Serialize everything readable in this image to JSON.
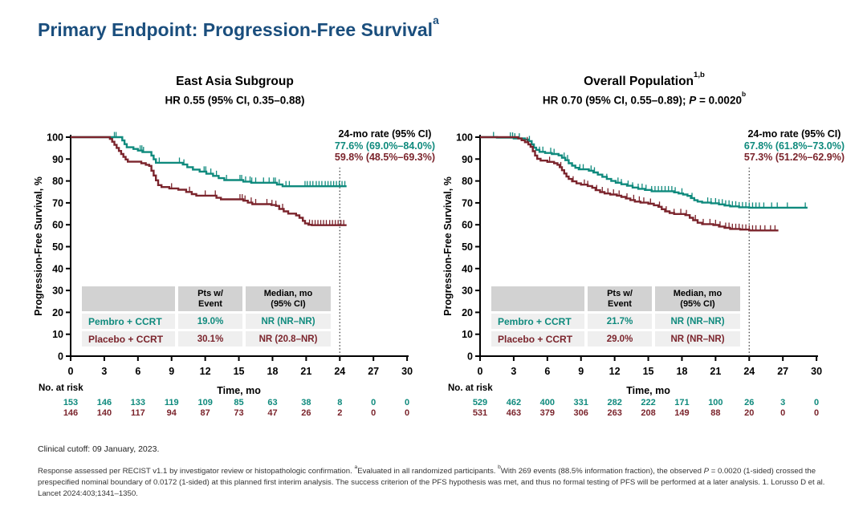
{
  "slide": {
    "title": "Primary Endpoint: Progression-Free Survival",
    "title_sup": "a",
    "clinical_cutoff": "Clinical cutoff: 09 January, 2023.",
    "footnote_parts": {
      "f1": "Response assessed per RECIST v1.1 by investigator review or histopathologic confirmation. ",
      "sup1": "a",
      "f2": "Evaluated in all randomized participants. ",
      "sup2": "b",
      "f3": "With 269 events (88.5% information fraction), the observed ",
      "p_italic": "P",
      "f4": " = 0.0020 (1-sided) crossed the prespecified nominal boundary of 0.0172 (1-sided) at this planned first interim analysis. The success criterion of the PFS hypothesis was met, and thus no formal testing of PFS will be performed at a later analysis. 1. Lorusso D et al. Lancet 2024:403;1341–1350."
    }
  },
  "colors": {
    "title_blue": "#1a4e7d",
    "pembro": "#0f8a7d",
    "placebo": "#7b242c",
    "axis": "#000000",
    "dotted": "#444444",
    "table_header_bg": "#d2d2d2",
    "table_row_bg": "#efefef"
  },
  "chart_data": [
    {
      "type": "line",
      "km_step": true,
      "title": "East Asia Subgroup",
      "title_sup": "",
      "subtitle_parts": {
        "pre": "HR 0.55 (95% CI, 0.35–0.88)",
        "p": "",
        "mid": "",
        "sup": ""
      },
      "xlabel": "Time, mo",
      "ylabel": "Progression-Free Survival, %",
      "xlim": [
        0,
        30
      ],
      "ylim": [
        0,
        100
      ],
      "xticks": [
        0,
        3,
        6,
        9,
        12,
        15,
        18,
        21,
        24,
        27,
        30
      ],
      "yticks": [
        0,
        10,
        20,
        30,
        40,
        50,
        60,
        70,
        80,
        90,
        100
      ],
      "dotted_x": 24,
      "annotation": {
        "header": "24-mo rate (95% CI)",
        "pembro": "77.6% (69.0%–84.0%)",
        "placebo": "59.8% (48.5%–69.3%)"
      },
      "table": {
        "headers": [
          "",
          "Pts w/\nEvent",
          "Median, mo\n(95% CI)"
        ],
        "rows": [
          {
            "label": "Pembro + CCRT",
            "event": "19.0%",
            "median": "NR (NR–NR)"
          },
          {
            "label": "Placebo + CCRT",
            "event": "30.1%",
            "median": "NR (20.8–NR)"
          }
        ]
      },
      "no_at_risk_label": "No. at risk",
      "at_risk": [
        {
          "name": "Pembro + CCRT",
          "color_key": "pembro",
          "values": [
            153,
            146,
            133,
            119,
            109,
            85,
            63,
            38,
            8,
            0,
            0
          ]
        },
        {
          "name": "Placebo + CCRT",
          "color_key": "placebo",
          "values": [
            146,
            140,
            117,
            94,
            87,
            73,
            47,
            26,
            2,
            0,
            0
          ]
        }
      ],
      "series": [
        {
          "name": "Pembro + CCRT",
          "color_key": "pembro",
          "points": [
            [
              0,
              100
            ],
            [
              4.6,
              98.5
            ],
            [
              4.8,
              96.8
            ],
            [
              5.0,
              95.4
            ],
            [
              5.6,
              94.6
            ],
            [
              6.0,
              93.9
            ],
            [
              6.4,
              93.2
            ],
            [
              7.2,
              91.6
            ],
            [
              7.4,
              89.9
            ],
            [
              7.6,
              88.3
            ],
            [
              10.0,
              87.5
            ],
            [
              10.4,
              86.3
            ],
            [
              10.9,
              85.2
            ],
            [
              11.5,
              84.3
            ],
            [
              12.1,
              83.3
            ],
            [
              12.7,
              82.3
            ],
            [
              13.2,
              81.3
            ],
            [
              13.7,
              80.4
            ],
            [
              15.4,
              79.7
            ],
            [
              16.1,
              79.2
            ],
            [
              18.4,
              78.4
            ],
            [
              18.9,
              77.6
            ],
            [
              24.6,
              77.6
            ]
          ],
          "censors": [
            3.9,
            4.05,
            6.2,
            6.35,
            6.5,
            7.9,
            9.7,
            10.1,
            11.9,
            12.05,
            12.5,
            13.0,
            13.9,
            15.1,
            15.25,
            15.6,
            16.0,
            16.15,
            16.5,
            17.2,
            17.7,
            18.1,
            18.25,
            18.6,
            19.2,
            19.5,
            20.9,
            21.1,
            21.35,
            21.6,
            21.9,
            22.15,
            22.4,
            22.7,
            22.95,
            23.2,
            23.45,
            23.7,
            23.95,
            24.2,
            24.45
          ]
        },
        {
          "name": "Placebo + CCRT",
          "color_key": "placebo",
          "points": [
            [
              0,
              100
            ],
            [
              3.5,
              99.2
            ],
            [
              3.7,
              97.9
            ],
            [
              3.9,
              96.5
            ],
            [
              4.1,
              95.1
            ],
            [
              4.3,
              93.7
            ],
            [
              4.5,
              92.3
            ],
            [
              4.7,
              91.0
            ],
            [
              4.9,
              89.8
            ],
            [
              5.1,
              88.8
            ],
            [
              6.3,
              88.1
            ],
            [
              6.7,
              87.4
            ],
            [
              7.0,
              86.9
            ],
            [
              7.2,
              84.7
            ],
            [
              7.4,
              82.5
            ],
            [
              7.6,
              80.3
            ],
            [
              7.8,
              78.1
            ],
            [
              8.1,
              77.2
            ],
            [
              8.8,
              76.6
            ],
            [
              9.6,
              76.0
            ],
            [
              10.3,
              75.0
            ],
            [
              10.8,
              74.0
            ],
            [
              11.2,
              73.3
            ],
            [
              13.0,
              72.3
            ],
            [
              13.4,
              71.6
            ],
            [
              15.4,
              71.0
            ],
            [
              15.8,
              70.1
            ],
            [
              16.2,
              69.4
            ],
            [
              17.9,
              69.0
            ],
            [
              18.3,
              68.6
            ],
            [
              18.6,
              67.2
            ],
            [
              19.0,
              66.1
            ],
            [
              19.4,
              65.1
            ],
            [
              20.1,
              64.3
            ],
            [
              20.4,
              63.2
            ],
            [
              20.7,
              61.8
            ],
            [
              20.9,
              60.6
            ],
            [
              21.2,
              60.0
            ],
            [
              21.5,
              59.8
            ],
            [
              24.6,
              59.8
            ]
          ],
          "censors": [
            9.0,
            10.6,
            12.0,
            12.9,
            15.1,
            15.3,
            15.55,
            16.1,
            16.5,
            17.5,
            17.95,
            18.3,
            18.9,
            21.3,
            21.55,
            21.8,
            22.05,
            22.3,
            22.55,
            22.8,
            23.1,
            23.35,
            23.6,
            23.85,
            24.1,
            24.35
          ]
        }
      ]
    },
    {
      "type": "line",
      "km_step": true,
      "title": "Overall Population",
      "title_sup": "1,b",
      "subtitle_parts": {
        "pre": "HR 0.70 (95% CI, 0.55–0.89); ",
        "p": "P",
        "mid": " = 0.0020",
        "sup": "b"
      },
      "xlabel": "Time, mo",
      "ylabel": "Progression-Free Survival, %",
      "xlim": [
        0,
        30
      ],
      "ylim": [
        0,
        100
      ],
      "xticks": [
        0,
        3,
        6,
        9,
        12,
        15,
        18,
        21,
        24,
        27,
        30
      ],
      "yticks": [
        0,
        10,
        20,
        30,
        40,
        50,
        60,
        70,
        80,
        90,
        100
      ],
      "dotted_x": 24,
      "annotation": {
        "header": "24-mo rate (95% CI)",
        "pembro": "67.8% (61.8%–73.0%)",
        "placebo": "57.3% (51.2%–62.9%)"
      },
      "table": {
        "headers": [
          "",
          "Pts w/\nEvent",
          "Median, mo\n(95% CI)"
        ],
        "rows": [
          {
            "label": "Pembro + CCRT",
            "event": "21.7%",
            "median": "NR (NR–NR)"
          },
          {
            "label": "Placebo + CCRT",
            "event": "29.0%",
            "median": "NR (NR–NR)"
          }
        ]
      },
      "no_at_risk_label": "No. at risk",
      "at_risk": [
        {
          "name": "Pembro + CCRT",
          "color_key": "pembro",
          "values": [
            529,
            462,
            400,
            331,
            282,
            222,
            171,
            100,
            26,
            3,
            0
          ]
        },
        {
          "name": "Placebo + CCRT",
          "color_key": "placebo",
          "values": [
            531,
            463,
            379,
            306,
            263,
            208,
            149,
            88,
            20,
            0,
            0
          ]
        }
      ],
      "series": [
        {
          "name": "Pembro + CCRT",
          "color_key": "pembro",
          "points": [
            [
              0,
              100
            ],
            [
              1.5,
              99.8
            ],
            [
              3.0,
              99.4
            ],
            [
              4.0,
              98.9
            ],
            [
              4.3,
              98.2
            ],
            [
              4.6,
              96.7
            ],
            [
              4.8,
              95.2
            ],
            [
              5.0,
              94.2
            ],
            [
              5.3,
              93.3
            ],
            [
              5.8,
              92.8
            ],
            [
              6.4,
              92.3
            ],
            [
              7.0,
              91.7
            ],
            [
              7.3,
              90.6
            ],
            [
              7.6,
              89.5
            ],
            [
              7.9,
              88.1
            ],
            [
              8.2,
              87.0
            ],
            [
              8.5,
              86.0
            ],
            [
              8.8,
              85.3
            ],
            [
              9.7,
              84.7
            ],
            [
              10.1,
              83.9
            ],
            [
              10.5,
              82.9
            ],
            [
              10.9,
              81.9
            ],
            [
              11.3,
              80.9
            ],
            [
              11.7,
              80.0
            ],
            [
              12.1,
              79.2
            ],
            [
              12.6,
              78.5
            ],
            [
              13.1,
              77.8
            ],
            [
              13.6,
              77.0
            ],
            [
              14.1,
              76.4
            ],
            [
              14.7,
              75.9
            ],
            [
              15.3,
              75.3
            ],
            [
              17.3,
              74.8
            ],
            [
              17.7,
              74.3
            ],
            [
              18.1,
              73.8
            ],
            [
              18.5,
              73.2
            ],
            [
              18.8,
              72.2
            ],
            [
              19.1,
              71.2
            ],
            [
              19.4,
              70.6
            ],
            [
              19.8,
              70.1
            ],
            [
              20.6,
              69.8
            ],
            [
              21.3,
              69.3
            ],
            [
              21.8,
              68.8
            ],
            [
              22.3,
              68.4
            ],
            [
              23.1,
              68.0
            ],
            [
              24.0,
              67.8
            ],
            [
              29.2,
              67.8
            ]
          ],
          "censors": [
            1.2,
            2.7,
            2.9,
            3.1,
            3.5,
            4.4,
            5.3,
            5.6,
            6.3,
            6.6,
            7.5,
            7.8,
            8.9,
            9.2,
            9.9,
            10.2,
            11.3,
            12.3,
            12.6,
            13.2,
            13.6,
            14.1,
            14.45,
            14.8,
            15.3,
            15.6,
            15.9,
            16.2,
            16.5,
            16.8,
            17.1,
            17.4,
            18.0,
            18.9,
            20.3,
            20.6,
            21.0,
            21.3,
            21.6,
            21.9,
            22.2,
            22.5,
            22.8,
            23.1,
            23.4,
            23.7,
            24.0,
            24.3,
            24.6,
            24.9,
            25.3,
            26.0,
            26.5,
            27.4,
            29.0
          ]
        },
        {
          "name": "Placebo + CCRT",
          "color_key": "placebo",
          "points": [
            [
              0,
              100
            ],
            [
              3.4,
              99.4
            ],
            [
              3.7,
              98.6
            ],
            [
              4.0,
              97.7
            ],
            [
              4.3,
              96.7
            ],
            [
              4.5,
              95.6
            ],
            [
              4.7,
              93.6
            ],
            [
              4.9,
              91.6
            ],
            [
              5.1,
              90.1
            ],
            [
              5.4,
              89.3
            ],
            [
              6.0,
              88.7
            ],
            [
              6.6,
              88.1
            ],
            [
              6.9,
              87.4
            ],
            [
              7.1,
              86.3
            ],
            [
              7.3,
              84.9
            ],
            [
              7.5,
              83.4
            ],
            [
              7.7,
              82.0
            ],
            [
              7.9,
              80.9
            ],
            [
              8.2,
              79.8
            ],
            [
              8.6,
              78.9
            ],
            [
              9.0,
              78.3
            ],
            [
              9.6,
              77.7
            ],
            [
              10.0,
              76.9
            ],
            [
              10.3,
              75.8
            ],
            [
              10.7,
              74.9
            ],
            [
              11.1,
              74.3
            ],
            [
              11.6,
              73.8
            ],
            [
              12.2,
              73.3
            ],
            [
              12.6,
              72.7
            ],
            [
              13.0,
              72.0
            ],
            [
              13.4,
              71.3
            ],
            [
              13.8,
              70.6
            ],
            [
              14.3,
              70.1
            ],
            [
              15.0,
              69.6
            ],
            [
              15.5,
              68.9
            ],
            [
              15.9,
              68.2
            ],
            [
              16.2,
              67.1
            ],
            [
              16.5,
              66.1
            ],
            [
              16.9,
              65.4
            ],
            [
              17.3,
              64.9
            ],
            [
              18.3,
              64.4
            ],
            [
              18.7,
              63.2
            ],
            [
              19.0,
              62.1
            ],
            [
              19.4,
              60.9
            ],
            [
              19.8,
              60.3
            ],
            [
              20.8,
              59.9
            ],
            [
              21.3,
              59.2
            ],
            [
              21.8,
              58.6
            ],
            [
              22.3,
              58.1
            ],
            [
              23.2,
              57.8
            ],
            [
              24.0,
              57.4
            ],
            [
              26.6,
              57.4
            ]
          ],
          "censors": [
            4.2,
            6.2,
            7.2,
            8.3,
            9.3,
            9.6,
            10.4,
            10.9,
            11.4,
            11.9,
            12.4,
            13.1,
            13.7,
            14.2,
            14.6,
            15.2,
            16.0,
            16.6,
            17.3,
            17.9,
            18.4,
            19.2,
            19.9,
            20.5,
            21.0,
            21.4,
            21.9,
            22.2,
            22.5,
            22.8,
            23.1,
            23.4,
            23.7,
            24.0,
            24.3,
            24.6,
            25.0,
            25.4,
            25.9,
            26.3
          ]
        }
      ]
    }
  ]
}
